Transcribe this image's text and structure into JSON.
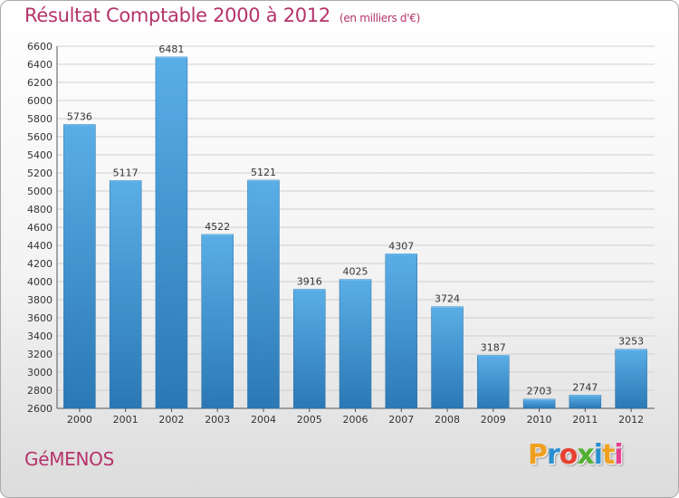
{
  "chart_data": {
    "type": "bar",
    "title": "Résultat Comptable 2000 à 2012",
    "subtitle": "(en milliers d'€)",
    "xlabel": "",
    "ylabel": "",
    "categories": [
      "2000",
      "2001",
      "2002",
      "2003",
      "2004",
      "2005",
      "2006",
      "2007",
      "2008",
      "2009",
      "2010",
      "2011",
      "2012"
    ],
    "values": [
      5736,
      5117,
      6481,
      4522,
      5121,
      3916,
      4025,
      4307,
      3724,
      3187,
      2703,
      2747,
      3253
    ],
    "ylim": [
      2600,
      6600
    ],
    "ytick_step": 200,
    "grid": true,
    "bar_color_top": "#5aaee6",
    "bar_color_bottom": "#2b78b5"
  },
  "footer": {
    "commune": "GéMENOS",
    "logo_letters": [
      "P",
      "r",
      "o",
      "x",
      "i",
      "t",
      "i"
    ],
    "logo_colors": [
      "#f0a020",
      "#2a8fd0",
      "#e84030",
      "#50b030",
      "#2a8fd0",
      "#f0a020",
      "#e84090"
    ]
  },
  "colors": {
    "accent": "#b5336b"
  }
}
